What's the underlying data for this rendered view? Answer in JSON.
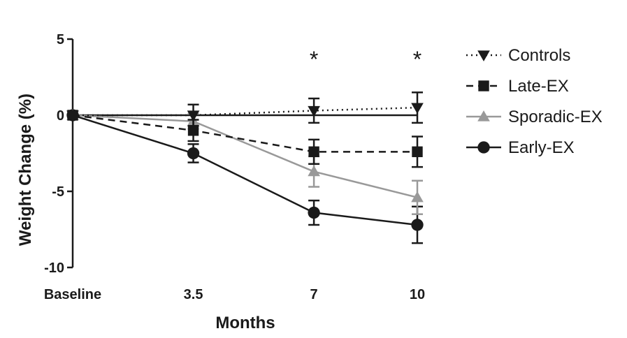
{
  "chart_data": {
    "type": "line",
    "title": "",
    "xlabel": "Months",
    "ylabel": "Weight Change (%)",
    "categories": [
      "Baseline",
      "3.5",
      "7",
      "10"
    ],
    "x": [
      0,
      3.5,
      7,
      10
    ],
    "ylim": [
      -10,
      5
    ],
    "yticks": [
      5,
      0,
      -5,
      -10
    ],
    "grid": false,
    "legend_position": "right",
    "series": [
      {
        "name": "Controls",
        "style": "dotted",
        "marker": "triangle-down",
        "color": "#1a1a1a",
        "values": [
          0,
          0,
          0.3,
          0.5
        ],
        "errors": [
          0,
          0.7,
          0.8,
          1.0
        ]
      },
      {
        "name": "Late-EX",
        "style": "dashed",
        "marker": "square",
        "color": "#1a1a1a",
        "values": [
          0,
          -1.0,
          -2.4,
          -2.4
        ],
        "errors": [
          0,
          0.7,
          0.8,
          1.0
        ]
      },
      {
        "name": "Sporadic-EX",
        "style": "solid",
        "marker": "triangle-up",
        "color": "#999999",
        "values": [
          0,
          -0.4,
          -3.7,
          -5.4
        ],
        "errors": [
          0,
          0.5,
          1.0,
          1.1
        ]
      },
      {
        "name": "Early-EX",
        "style": "solid",
        "marker": "circle",
        "color": "#1a1a1a",
        "values": [
          0,
          -2.5,
          -6.4,
          -7.2
        ],
        "errors": [
          0,
          0.6,
          0.8,
          1.2
        ]
      }
    ],
    "annotations": [
      {
        "text": "*",
        "x": 7
      },
      {
        "text": "*",
        "x": 10
      }
    ]
  }
}
